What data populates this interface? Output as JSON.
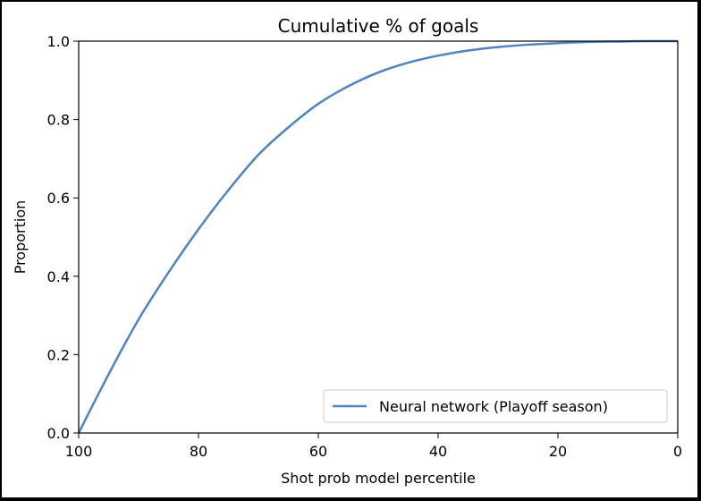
{
  "chart_data": {
    "type": "line",
    "title": "Cumulative % of goals",
    "xlabel": "Shot prob model percentile",
    "ylabel": "Proportion",
    "xlim": [
      100,
      0
    ],
    "ylim": [
      0,
      1
    ],
    "x_inverted": true,
    "xticks": [
      "100",
      "80",
      "60",
      "40",
      "20",
      "0"
    ],
    "yticks": [
      "0.0",
      "0.2",
      "0.4",
      "0.6",
      "0.8",
      "1.0"
    ],
    "grid": false,
    "legend_position": "lower-right",
    "series": [
      {
        "name": "Neural network (Playoff season)",
        "color": "#4c84c4",
        "x": [
          100,
          95,
          90,
          85,
          80,
          75,
          70,
          65,
          60,
          55,
          50,
          45,
          40,
          35,
          30,
          25,
          20,
          15,
          10,
          5,
          0
        ],
        "y": [
          0.0,
          0.15,
          0.29,
          0.41,
          0.52,
          0.62,
          0.71,
          0.78,
          0.84,
          0.885,
          0.92,
          0.945,
          0.963,
          0.976,
          0.985,
          0.991,
          0.995,
          0.998,
          0.999,
          1.0,
          1.0
        ]
      }
    ]
  }
}
